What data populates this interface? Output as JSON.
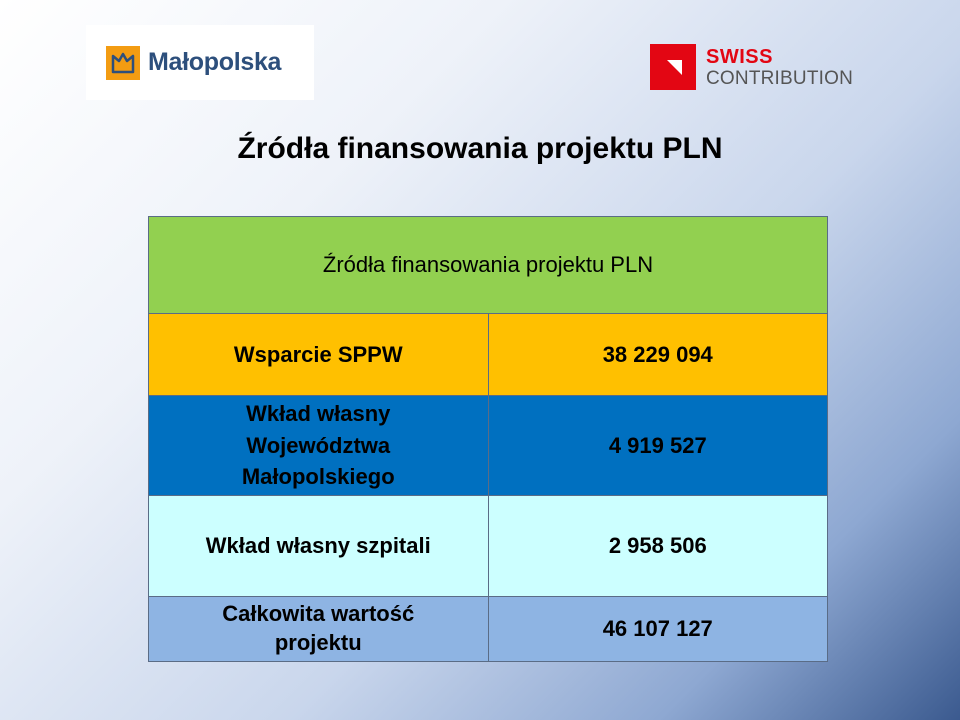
{
  "logos": {
    "left": {
      "name": "Małopolska"
    },
    "right": {
      "line1": "SWISS",
      "line2": "CONTRIBUTION"
    }
  },
  "title": "Źródła finansowania projektu PLN",
  "table": {
    "header": "Źródła finansowania projektu PLN",
    "rows": [
      {
        "label": "Wsparcie SPPW",
        "value": "38 229 094"
      },
      {
        "label": "Wkład własny Województwa Małopolskiego",
        "value": "4 919 527"
      },
      {
        "label": "Wkład własny szpitali",
        "value": "2 958 506"
      },
      {
        "label": "Całkowita wartość projektu",
        "value": "46 107 127"
      }
    ]
  },
  "colors": {
    "header_bg": "#92d050",
    "row1_bg": "#ffc000",
    "row2_bg": "#0070c0",
    "row3_bg": "#ccffff",
    "row4_bg": "#8eb4e3",
    "swiss_red": "#e30613",
    "malopolska_orange": "#f39c12",
    "malopolska_blue": "#2d4f7c"
  }
}
